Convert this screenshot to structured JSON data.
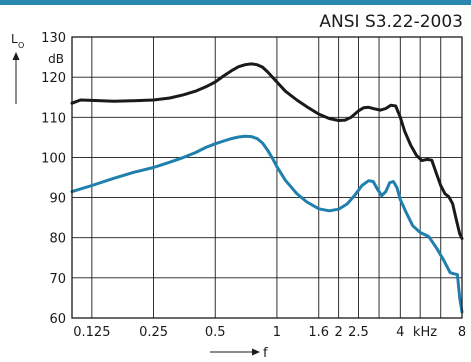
{
  "header_color": "#2a87ad",
  "chart_data": {
    "type": "line",
    "title": "ANSI S3.22-2003",
    "y_label_main": "L",
    "y_label_sub": "O",
    "y_unit": "dB",
    "x_label": "f",
    "x_unit": "kHz",
    "x_scale": "log",
    "ylim": [
      60,
      130
    ],
    "xlim": [
      0.1,
      8
    ],
    "grid": true,
    "yticks": [
      60,
      70,
      80,
      90,
      100,
      110,
      120,
      130
    ],
    "xticks": [
      {
        "value": 0.125,
        "label": "0.125"
      },
      {
        "value": 0.25,
        "label": "0.25"
      },
      {
        "value": 0.5,
        "label": "0.5"
      },
      {
        "value": 1,
        "label": "1"
      },
      {
        "value": 1.6,
        "label": "1.6"
      },
      {
        "value": 2,
        "label": "2"
      },
      {
        "value": 2.5,
        "label": "2.5"
      },
      {
        "value": 4,
        "label": "4"
      },
      {
        "value": 8,
        "label": "8"
      }
    ],
    "vgrid": [
      0.125,
      0.25,
      0.5,
      1,
      1.6,
      2,
      2.5,
      3.15,
      4,
      5,
      6.3,
      8
    ],
    "series": [
      {
        "color": "#1a1a1a",
        "points": [
          [
            0.1,
            113.5
          ],
          [
            0.11,
            114.3
          ],
          [
            0.125,
            114.2
          ],
          [
            0.16,
            114.0
          ],
          [
            0.2,
            114.1
          ],
          [
            0.25,
            114.3
          ],
          [
            0.3,
            114.8
          ],
          [
            0.35,
            115.6
          ],
          [
            0.4,
            116.5
          ],
          [
            0.45,
            117.6
          ],
          [
            0.5,
            118.8
          ],
          [
            0.55,
            120.3
          ],
          [
            0.6,
            121.6
          ],
          [
            0.65,
            122.6
          ],
          [
            0.7,
            123.1
          ],
          [
            0.75,
            123.3
          ],
          [
            0.8,
            123.1
          ],
          [
            0.85,
            122.5
          ],
          [
            0.9,
            121.3
          ],
          [
            0.95,
            120.0
          ],
          [
            1.0,
            118.8
          ],
          [
            1.1,
            116.5
          ],
          [
            1.25,
            114.3
          ],
          [
            1.4,
            112.6
          ],
          [
            1.6,
            110.8
          ],
          [
            1.8,
            109.7
          ],
          [
            2.0,
            109.2
          ],
          [
            2.15,
            109.3
          ],
          [
            2.3,
            110.0
          ],
          [
            2.5,
            111.6
          ],
          [
            2.65,
            112.4
          ],
          [
            2.8,
            112.5
          ],
          [
            3.0,
            112.1
          ],
          [
            3.2,
            111.8
          ],
          [
            3.4,
            112.2
          ],
          [
            3.6,
            113.0
          ],
          [
            3.8,
            112.8
          ],
          [
            4.0,
            110.0
          ],
          [
            4.2,
            106.5
          ],
          [
            4.5,
            103.0
          ],
          [
            4.8,
            100.5
          ],
          [
            5.1,
            99.2
          ],
          [
            5.4,
            99.5
          ],
          [
            5.7,
            99.3
          ],
          [
            6.0,
            96.0
          ],
          [
            6.3,
            93.0
          ],
          [
            6.6,
            91.0
          ],
          [
            6.9,
            90.2
          ],
          [
            7.2,
            88.5
          ],
          [
            7.5,
            84.5
          ],
          [
            7.8,
            81.0
          ],
          [
            8.0,
            79.8
          ]
        ]
      },
      {
        "color": "#1f7fad",
        "points": [
          [
            0.1,
            91.5
          ],
          [
            0.125,
            93.0
          ],
          [
            0.16,
            94.8
          ],
          [
            0.2,
            96.3
          ],
          [
            0.25,
            97.5
          ],
          [
            0.3,
            98.8
          ],
          [
            0.35,
            100.0
          ],
          [
            0.4,
            101.2
          ],
          [
            0.45,
            102.5
          ],
          [
            0.5,
            103.4
          ],
          [
            0.55,
            104.1
          ],
          [
            0.6,
            104.7
          ],
          [
            0.65,
            105.1
          ],
          [
            0.7,
            105.3
          ],
          [
            0.75,
            105.2
          ],
          [
            0.8,
            104.7
          ],
          [
            0.85,
            103.6
          ],
          [
            0.9,
            101.8
          ],
          [
            0.95,
            99.8
          ],
          [
            1.0,
            97.7
          ],
          [
            1.1,
            94.3
          ],
          [
            1.25,
            91.0
          ],
          [
            1.4,
            88.9
          ],
          [
            1.6,
            87.2
          ],
          [
            1.8,
            86.7
          ],
          [
            2.0,
            87.1
          ],
          [
            2.2,
            88.4
          ],
          [
            2.4,
            90.6
          ],
          [
            2.6,
            93.0
          ],
          [
            2.8,
            94.2
          ],
          [
            2.95,
            94.0
          ],
          [
            3.1,
            92.0
          ],
          [
            3.25,
            90.5
          ],
          [
            3.4,
            91.5
          ],
          [
            3.55,
            93.7
          ],
          [
            3.7,
            94.0
          ],
          [
            3.85,
            92.5
          ],
          [
            4.0,
            89.5
          ],
          [
            4.3,
            86.0
          ],
          [
            4.6,
            83.0
          ],
          [
            5.0,
            81.3
          ],
          [
            5.5,
            80.3
          ],
          [
            6.0,
            77.5
          ],
          [
            6.5,
            74.5
          ],
          [
            7.0,
            71.3
          ],
          [
            7.3,
            71.0
          ],
          [
            7.6,
            70.8
          ],
          [
            7.8,
            65.0
          ],
          [
            8.0,
            61.5
          ]
        ]
      }
    ]
  }
}
